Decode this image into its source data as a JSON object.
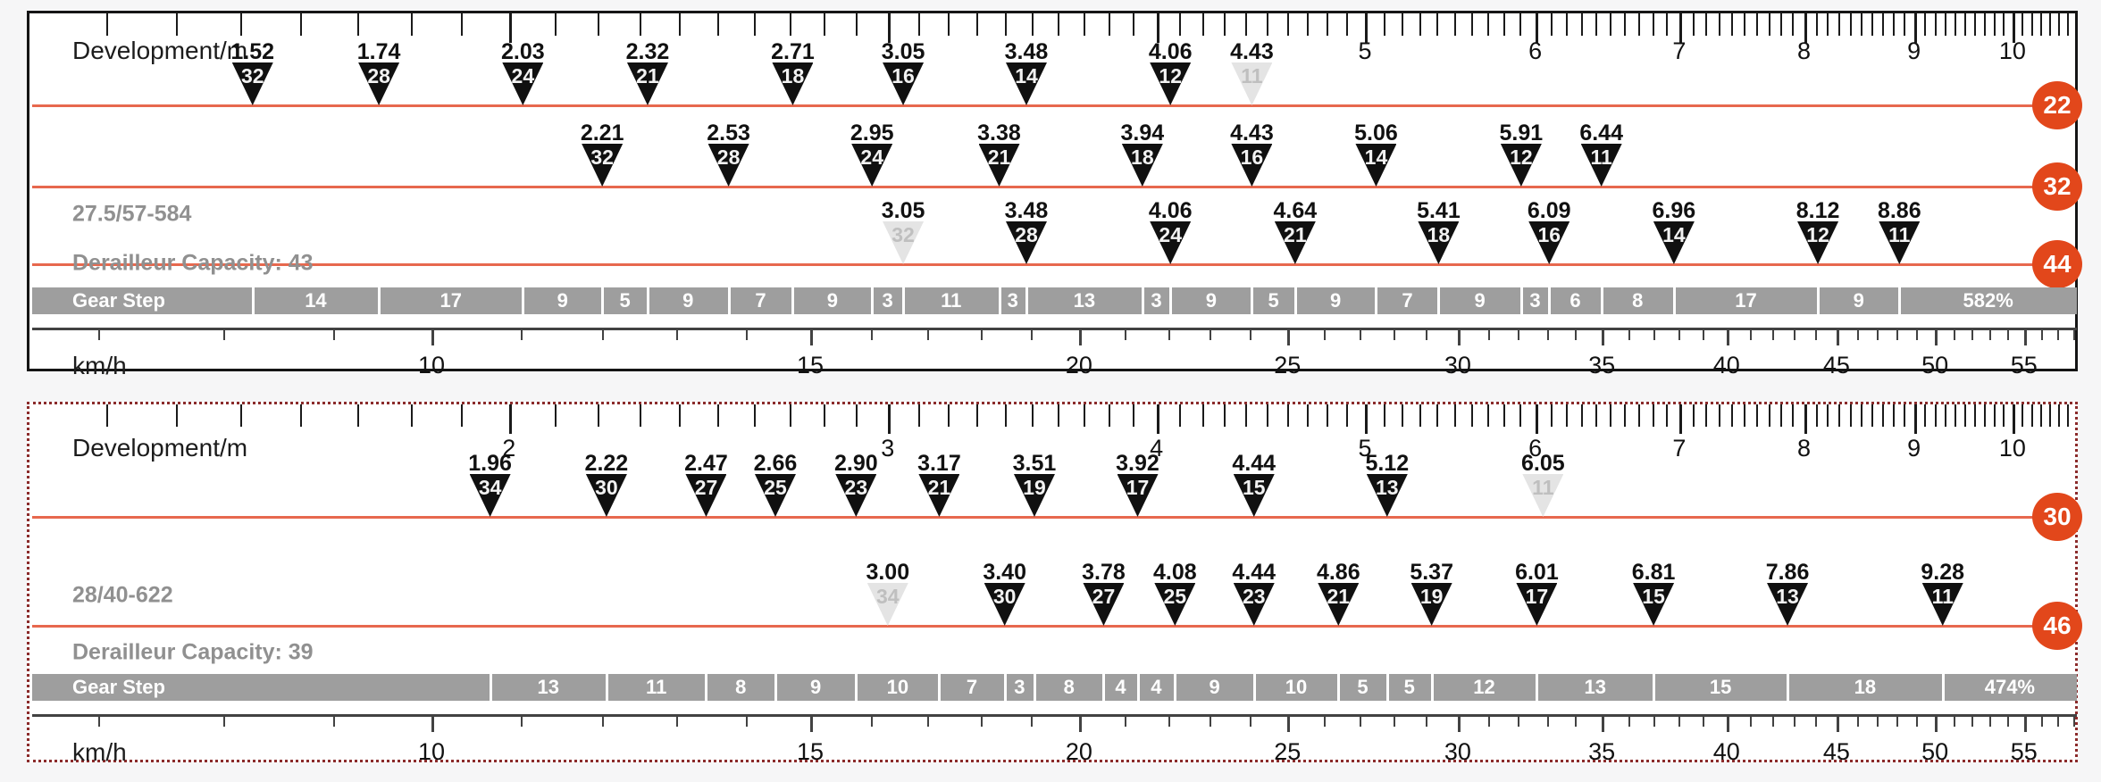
{
  "page": {
    "background": "#f6f6f7"
  },
  "colors": {
    "chainring_line": "#e7684e",
    "chainring_badge": "#e2471b",
    "triangle": "#101010",
    "triangle_muted": "#e4e4e4",
    "gear_bar_gray": "#9e9e9e",
    "side_label_gray": "#909090",
    "speed_axis_dark": "#424242"
  },
  "chart_data": [
    {
      "type": "gear-chart",
      "dev_axis_label": "Development/m",
      "speed_axis_label": "km/h",
      "gear_step_label": "Gear Step",
      "wheel_label": "27.5/57-584",
      "capacity_label": "Derailleur Capacity: 43",
      "capacity_struck_by_line": true,
      "dev_axis_numbered_ticks": [
        5,
        6,
        7,
        8,
        9,
        10
      ],
      "dev_axis_range": [
        1.3,
        10.7
      ],
      "speed_numbered_ticks": [
        10,
        15,
        20,
        25,
        30,
        35,
        40,
        45,
        50,
        55
      ],
      "speed_range": [
        7,
        58
      ],
      "chainrings": [
        {
          "teeth": "22",
          "gears": [
            {
              "dev": "1.52",
              "cog": "32"
            },
            {
              "dev": "1.74",
              "cog": "28"
            },
            {
              "dev": "2.03",
              "cog": "24"
            },
            {
              "dev": "2.32",
              "cog": "21"
            },
            {
              "dev": "2.71",
              "cog": "18"
            },
            {
              "dev": "3.05",
              "cog": "16"
            },
            {
              "dev": "3.48",
              "cog": "14"
            },
            {
              "dev": "4.06",
              "cog": "12"
            },
            {
              "dev": "4.43",
              "cog": "11",
              "muted": true
            }
          ]
        },
        {
          "teeth": "32",
          "gears": [
            {
              "dev": "2.21",
              "cog": "32"
            },
            {
              "dev": "2.53",
              "cog": "28"
            },
            {
              "dev": "2.95",
              "cog": "24"
            },
            {
              "dev": "3.38",
              "cog": "21"
            },
            {
              "dev": "3.94",
              "cog": "18"
            },
            {
              "dev": "4.43",
              "cog": "16"
            },
            {
              "dev": "5.06",
              "cog": "14"
            },
            {
              "dev": "5.91",
              "cog": "12"
            },
            {
              "dev": "6.44",
              "cog": "11"
            }
          ]
        },
        {
          "teeth": "44",
          "gears": [
            {
              "dev": "3.05",
              "cog": "32",
              "muted": true
            },
            {
              "dev": "3.48",
              "cog": "28"
            },
            {
              "dev": "4.06",
              "cog": "24"
            },
            {
              "dev": "4.64",
              "cog": "21"
            },
            {
              "dev": "5.41",
              "cog": "18"
            },
            {
              "dev": "6.09",
              "cog": "16"
            },
            {
              "dev": "6.96",
              "cog": "14"
            },
            {
              "dev": "8.12",
              "cog": "12"
            },
            {
              "dev": "8.86",
              "cog": "11"
            }
          ]
        }
      ],
      "gear_steps": [
        "14",
        "17",
        "9",
        "5",
        "9",
        "7",
        "9",
        "3",
        "11",
        "3",
        "13",
        "3",
        "9",
        "5",
        "9",
        "7",
        "9",
        "3",
        "6",
        "8",
        "17",
        "9"
      ],
      "gear_range_total": "582%"
    },
    {
      "type": "gear-chart",
      "dev_axis_label": "Development/m",
      "speed_axis_label": "km/h",
      "gear_step_label": "Gear Step",
      "wheel_label": "28/40-622",
      "capacity_label": "Derailleur Capacity: 39",
      "capacity_struck_by_line": false,
      "dev_axis_numbered_ticks": [
        2,
        3,
        4,
        5,
        6,
        7,
        8,
        9,
        10
      ],
      "dev_axis_range": [
        1.3,
        10.7
      ],
      "speed_numbered_ticks": [
        10,
        15,
        20,
        25,
        30,
        35,
        40,
        45,
        50,
        55
      ],
      "speed_range": [
        7,
        58
      ],
      "chainrings": [
        {
          "teeth": "30",
          "gears": [
            {
              "dev": "1.96",
              "cog": "34"
            },
            {
              "dev": "2.22",
              "cog": "30"
            },
            {
              "dev": "2.47",
              "cog": "27"
            },
            {
              "dev": "2.66",
              "cog": "25"
            },
            {
              "dev": "2.90",
              "cog": "23"
            },
            {
              "dev": "3.17",
              "cog": "21"
            },
            {
              "dev": "3.51",
              "cog": "19"
            },
            {
              "dev": "3.92",
              "cog": "17"
            },
            {
              "dev": "4.44",
              "cog": "15"
            },
            {
              "dev": "5.12",
              "cog": "13"
            },
            {
              "dev": "6.05",
              "cog": "11",
              "muted": true
            }
          ]
        },
        {
          "teeth": "46",
          "gears": [
            {
              "dev": "3.00",
              "cog": "34",
              "muted": true
            },
            {
              "dev": "3.40",
              "cog": "30"
            },
            {
              "dev": "3.78",
              "cog": "27"
            },
            {
              "dev": "4.08",
              "cog": "25"
            },
            {
              "dev": "4.44",
              "cog": "23"
            },
            {
              "dev": "4.86",
              "cog": "21"
            },
            {
              "dev": "5.37",
              "cog": "19"
            },
            {
              "dev": "6.01",
              "cog": "17"
            },
            {
              "dev": "6.81",
              "cog": "15"
            },
            {
              "dev": "7.86",
              "cog": "13"
            },
            {
              "dev": "9.28",
              "cog": "11"
            }
          ]
        }
      ],
      "gear_steps": [
        "13",
        "11",
        "8",
        "9",
        "10",
        "7",
        "3",
        "8",
        "4",
        "4",
        "9",
        "10",
        "5",
        "5",
        "12",
        "13",
        "15",
        "18"
      ],
      "gear_range_total": "474%"
    }
  ]
}
